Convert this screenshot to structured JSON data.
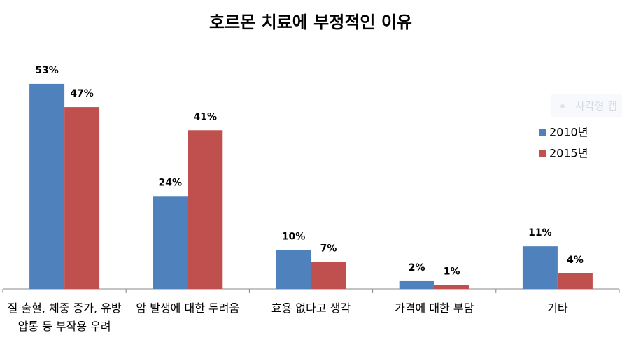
{
  "chart_data": {
    "type": "bar",
    "title": "호르몬 치료에 부정적인 이유",
    "categories": [
      "질 출혈, 체중 증가, 유방 압통 등 부작용 우려",
      "암 발생에 대한 두려움",
      "효용 없다고 생각",
      "가격에 대한 부담",
      "기타"
    ],
    "series": [
      {
        "name": "2010년",
        "color": "#4f81bd",
        "values": [
          53,
          24,
          10,
          2,
          11
        ],
        "value_labels": [
          "53%",
          "24%",
          "10%",
          "2%",
          "11%"
        ]
      },
      {
        "name": "2015년",
        "color": "#c0504d",
        "values": [
          47,
          41,
          7,
          1,
          4
        ],
        "value_labels": [
          "47%",
          "41%",
          "7%",
          "1%",
          "4%"
        ]
      }
    ],
    "legend": "right",
    "overlay_text": "사각형 캡"
  }
}
